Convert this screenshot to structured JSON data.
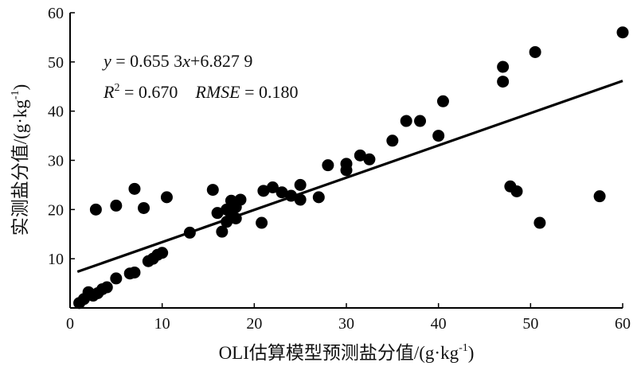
{
  "chart_data": {
    "type": "scatter",
    "title": "",
    "xlabel": "OLI估算模型预测盐分值/(g·kg",
    "xlabel_sup": "-1",
    "xlabel_tail": ")",
    "ylabel": "实测盐分值/(g·kg",
    "ylabel_sup": "-1",
    "ylabel_tail": ")",
    "xlim": [
      0,
      60
    ],
    "ylim": [
      0,
      60
    ],
    "xticks": [
      "0",
      "10",
      "20",
      "30",
      "40",
      "50",
      "60"
    ],
    "yticks": [
      "10",
      "20",
      "30",
      "40",
      "50",
      "60"
    ],
    "grid": false,
    "regression": {
      "slope": 0.6553,
      "intercept": 6.8279,
      "x_range": [
        0.8,
        60
      ],
      "equation_parts": {
        "lhs": "y",
        "mid": " = 0.655 3",
        "var": "x",
        "rhs": "+6.827 9"
      },
      "stats_parts": {
        "r": "R",
        "r_sup": "2",
        "r_val": " = 0.670",
        "rmse_name": "RMSE",
        "rmse_val": " = 0.180"
      }
    },
    "points": [
      [
        1.0,
        1.0
      ],
      [
        1.5,
        1.8
      ],
      [
        2.0,
        3.2
      ],
      [
        2.5,
        2.5
      ],
      [
        3.0,
        3.0
      ],
      [
        3.5,
        3.8
      ],
      [
        4.0,
        4.2
      ],
      [
        5.0,
        6.0
      ],
      [
        6.5,
        7.0
      ],
      [
        7.0,
        7.2
      ],
      [
        8.5,
        9.5
      ],
      [
        9.0,
        10.0
      ],
      [
        9.5,
        10.8
      ],
      [
        10.0,
        11.2
      ],
      [
        2.8,
        20.0
      ],
      [
        5.0,
        20.8
      ],
      [
        7.0,
        24.2
      ],
      [
        8.0,
        20.3
      ],
      [
        10.5,
        22.5
      ],
      [
        13.0,
        15.3
      ],
      [
        15.5,
        24.0
      ],
      [
        16.0,
        19.3
      ],
      [
        16.5,
        15.5
      ],
      [
        17.0,
        17.5
      ],
      [
        17.0,
        20.0
      ],
      [
        17.5,
        21.8
      ],
      [
        17.5,
        19.0
      ],
      [
        18.0,
        18.2
      ],
      [
        18.0,
        20.5
      ],
      [
        18.5,
        22.0
      ],
      [
        20.8,
        17.3
      ],
      [
        21.0,
        23.8
      ],
      [
        22.0,
        24.5
      ],
      [
        23.0,
        23.5
      ],
      [
        24.0,
        22.8
      ],
      [
        25.0,
        22.0
      ],
      [
        25.0,
        25.0
      ],
      [
        27.0,
        22.5
      ],
      [
        28.0,
        29.0
      ],
      [
        30.0,
        28.0
      ],
      [
        30.0,
        29.3
      ],
      [
        31.5,
        31.0
      ],
      [
        32.5,
        30.2
      ],
      [
        35.0,
        34.0
      ],
      [
        36.5,
        38.0
      ],
      [
        38.0,
        38.0
      ],
      [
        40.0,
        35.0
      ],
      [
        40.5,
        42.0
      ],
      [
        47.0,
        49.0
      ],
      [
        47.0,
        46.0
      ],
      [
        47.8,
        24.7
      ],
      [
        48.5,
        23.7
      ],
      [
        50.5,
        52.0
      ],
      [
        51.0,
        17.3
      ],
      [
        57.5,
        22.7
      ],
      [
        60.0,
        56.0
      ]
    ]
  }
}
